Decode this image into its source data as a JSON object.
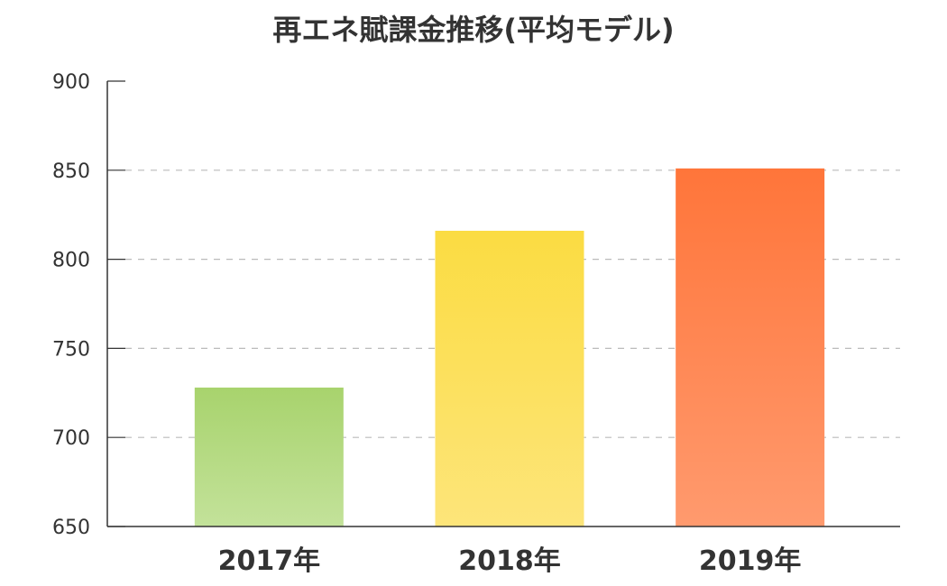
{
  "chart_data": {
    "type": "bar",
    "title": "再エネ賦課金推移(平均モデル)",
    "xlabel": "",
    "ylabel": "",
    "categories": [
      "2017年",
      "2018年",
      "2019年"
    ],
    "values": [
      728,
      816,
      851
    ],
    "ylim": [
      650,
      900
    ],
    "yticks": [
      650,
      700,
      750,
      800,
      850,
      900
    ],
    "grid": true,
    "legend": "none",
    "bar_colors": [
      {
        "top": "#a8d36d",
        "bottom": "#c3e29a"
      },
      {
        "top": "#fbdc42",
        "bottom": "#fde57a"
      },
      {
        "top": "#ff753a",
        "bottom": "#ff9a6e"
      }
    ],
    "text_color": "#333333",
    "axis_color": "#333333",
    "grid_color": "#bbbbbb"
  }
}
